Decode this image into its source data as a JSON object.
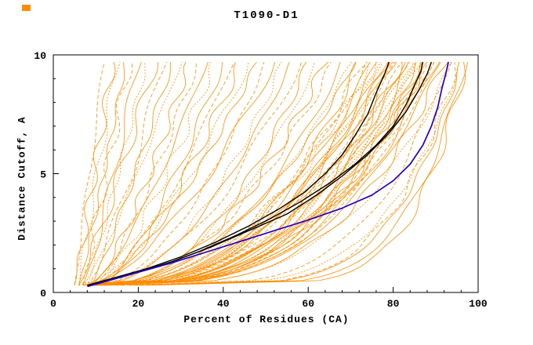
{
  "chart_data": {
    "type": "line",
    "title": "T1090-D1",
    "xlabel": "Percent of Residues (CA)",
    "ylabel": "Distance Cutoff, A",
    "xlim": [
      0,
      100
    ],
    "ylim": [
      0,
      10
    ],
    "x_major_ticks": [
      0,
      20,
      40,
      60,
      80,
      100
    ],
    "y_major_ticks": [
      0,
      5,
      10
    ],
    "x_minor_step": 4,
    "y_minor_step": 1,
    "grid": false,
    "legend": "none",
    "colors": {
      "predictions": "#ff8c00",
      "highlighted": "#000000",
      "reference": "#2200cc",
      "frame": "#000000"
    },
    "curve_model": "x(y) = x0 + (x1-x0)*((y-0.3)/9.4)^shape ; each orange entry is [x0, x1, shape]",
    "orange_curves": [
      [
        5,
        12,
        1.0
      ],
      [
        5,
        14,
        0.95
      ],
      [
        6,
        15,
        1.05
      ],
      [
        6,
        17,
        0.9
      ],
      [
        7,
        18,
        1.0
      ],
      [
        7,
        20,
        0.85
      ],
      [
        8,
        22,
        0.95
      ],
      [
        6,
        24,
        0.9
      ],
      [
        8,
        26,
        0.8
      ],
      [
        9,
        28,
        0.9
      ],
      [
        7,
        30,
        0.85
      ],
      [
        9,
        32,
        0.75
      ],
      [
        10,
        34,
        0.8
      ],
      [
        8,
        36,
        0.7
      ],
      [
        10,
        38,
        0.75
      ],
      [
        11,
        40,
        0.7
      ],
      [
        9,
        42,
        0.65
      ],
      [
        11,
        44,
        0.7
      ],
      [
        6,
        46,
        0.6
      ],
      [
        8,
        48,
        0.65
      ],
      [
        10,
        50,
        0.55
      ],
      [
        7,
        52,
        0.6
      ],
      [
        9,
        54,
        0.5
      ],
      [
        11,
        56,
        0.55
      ],
      [
        8,
        58,
        0.5
      ],
      [
        10,
        60,
        0.45
      ],
      [
        12,
        62,
        0.5
      ],
      [
        9,
        64,
        0.45
      ],
      [
        11,
        66,
        0.5
      ],
      [
        8,
        68,
        0.42
      ],
      [
        10,
        70,
        0.45
      ],
      [
        12,
        72,
        0.4
      ],
      [
        9,
        74,
        0.42
      ],
      [
        11,
        76,
        0.38
      ],
      [
        10,
        78,
        0.4
      ],
      [
        12,
        80,
        0.36
      ],
      [
        9,
        82,
        0.38
      ],
      [
        11,
        84,
        0.35
      ],
      [
        10,
        86,
        0.34
      ],
      [
        12,
        88,
        0.33
      ],
      [
        11,
        90,
        0.32
      ],
      [
        13,
        92,
        0.3
      ],
      [
        12,
        94,
        0.3
      ],
      [
        7,
        71,
        0.44
      ],
      [
        8,
        73,
        0.41
      ],
      [
        9,
        75,
        0.4
      ],
      [
        10,
        77,
        0.39
      ],
      [
        7,
        79,
        0.37
      ],
      [
        8,
        81,
        0.36
      ],
      [
        9,
        83,
        0.35
      ],
      [
        10,
        85,
        0.34
      ],
      [
        8,
        87,
        0.33
      ],
      [
        9,
        89,
        0.32
      ],
      [
        10,
        91,
        0.31
      ],
      [
        8,
        76,
        0.43
      ],
      [
        9,
        78,
        0.41
      ],
      [
        10,
        80,
        0.39
      ],
      [
        11,
        82,
        0.37
      ],
      [
        9,
        84,
        0.36
      ],
      [
        10,
        86,
        0.35
      ],
      [
        11,
        88,
        0.34
      ],
      [
        12,
        90,
        0.33
      ],
      [
        10,
        75,
        0.45
      ],
      [
        11,
        79,
        0.42
      ],
      [
        12,
        83,
        0.38
      ],
      [
        13,
        87,
        0.35
      ],
      [
        9,
        85,
        0.37
      ],
      [
        10,
        88,
        0.34
      ],
      [
        18,
        95,
        0.2
      ],
      [
        20,
        97,
        0.18
      ],
      [
        15,
        96,
        0.22
      ],
      [
        22,
        97,
        0.16
      ],
      [
        16,
        93,
        0.24
      ],
      [
        19,
        96,
        0.2
      ]
    ],
    "black_curves": [
      [
        [
          8,
          0.3
        ],
        [
          14,
          0.6
        ],
        [
          22,
          1.0
        ],
        [
          30,
          1.5
        ],
        [
          38,
          2.1
        ],
        [
          46,
          2.8
        ],
        [
          53,
          3.5
        ],
        [
          59,
          4.2
        ],
        [
          64,
          5.0
        ],
        [
          68,
          5.8
        ],
        [
          71,
          6.6
        ],
        [
          74,
          7.5
        ],
        [
          76,
          8.4
        ],
        [
          78,
          9.2
        ],
        [
          79,
          9.7
        ]
      ],
      [
        [
          9,
          0.3
        ],
        [
          16,
          0.65
        ],
        [
          25,
          1.1
        ],
        [
          34,
          1.7
        ],
        [
          43,
          2.4
        ],
        [
          51,
          3.1
        ],
        [
          58,
          3.8
        ],
        [
          65,
          4.6
        ],
        [
          71,
          5.4
        ],
        [
          76,
          6.2
        ],
        [
          80,
          7.0
        ],
        [
          83,
          7.9
        ],
        [
          85,
          8.7
        ],
        [
          86.5,
          9.3
        ],
        [
          87,
          9.7
        ]
      ],
      [
        [
          10,
          0.35
        ],
        [
          18,
          0.75
        ],
        [
          28,
          1.3
        ],
        [
          37,
          1.9
        ],
        [
          46,
          2.6
        ],
        [
          55,
          3.3
        ],
        [
          62,
          4.1
        ],
        [
          68,
          4.9
        ],
        [
          74,
          5.8
        ],
        [
          79,
          6.7
        ],
        [
          83,
          7.6
        ],
        [
          86,
          8.5
        ],
        [
          88,
          9.2
        ],
        [
          89,
          9.7
        ]
      ]
    ],
    "blue_curve": [
      [
        8,
        0.25
      ],
      [
        13,
        0.5
      ],
      [
        20,
        0.85
      ],
      [
        28,
        1.25
      ],
      [
        36,
        1.7
      ],
      [
        44,
        2.15
      ],
      [
        52,
        2.6
      ],
      [
        60,
        3.05
      ],
      [
        68,
        3.55
      ],
      [
        75,
        4.1
      ],
      [
        80,
        4.7
      ],
      [
        84,
        5.4
      ],
      [
        87,
        6.2
      ],
      [
        89,
        7.0
      ],
      [
        90.5,
        7.8
      ],
      [
        91.5,
        8.6
      ],
      [
        92.5,
        9.3
      ],
      [
        93,
        9.7
      ]
    ]
  }
}
